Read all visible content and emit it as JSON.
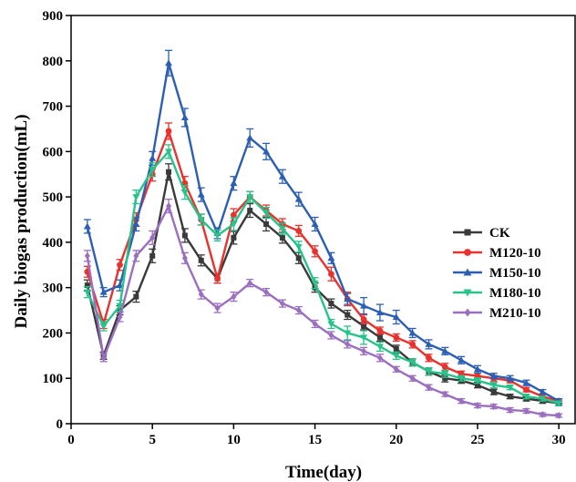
{
  "chart_data": {
    "type": "line",
    "xlabel": "Time(day)",
    "ylabel": "Daily biogas production(mL)",
    "xlim": [
      0,
      31
    ],
    "ylim": [
      0,
      900
    ],
    "xticks": [
      0,
      5,
      10,
      15,
      20,
      25,
      30
    ],
    "yticks": [
      0,
      100,
      200,
      300,
      400,
      500,
      600,
      700,
      800,
      900
    ],
    "grid": false,
    "legend": "right",
    "x": [
      1,
      2,
      3,
      4,
      5,
      6,
      7,
      8,
      9,
      10,
      11,
      12,
      13,
      14,
      15,
      16,
      17,
      18,
      19,
      20,
      21,
      22,
      23,
      24,
      25,
      26,
      27,
      28,
      29,
      30
    ],
    "series": [
      {
        "name": "CK",
        "color": "#3a3a3a",
        "marker": "square",
        "values": [
          305,
          150,
          250,
          280,
          370,
          555,
          415,
          360,
          320,
          410,
          470,
          440,
          410,
          365,
          300,
          265,
          240,
          215,
          190,
          165,
          135,
          115,
          100,
          95,
          85,
          70,
          60,
          55,
          50,
          45
        ],
        "errors": [
          12,
          8,
          10,
          12,
          15,
          18,
          15,
          12,
          10,
          14,
          15,
          15,
          12,
          12,
          10,
          10,
          10,
          8,
          8,
          8,
          8,
          8,
          8,
          6,
          6,
          6,
          5,
          5,
          5,
          5
        ]
      },
      {
        "name": "M120-10",
        "color": "#e8322d",
        "marker": "circle",
        "values": [
          335,
          220,
          350,
          450,
          550,
          645,
          530,
          450,
          320,
          460,
          500,
          470,
          440,
          425,
          380,
          330,
          275,
          230,
          205,
          190,
          175,
          145,
          125,
          110,
          105,
          100,
          95,
          75,
          60,
          50
        ],
        "errors": [
          12,
          10,
          12,
          15,
          15,
          18,
          15,
          12,
          10,
          14,
          12,
          12,
          12,
          12,
          12,
          15,
          15,
          10,
          8,
          8,
          8,
          8,
          8,
          6,
          6,
          6,
          5,
          5,
          5,
          5
        ]
      },
      {
        "name": "M150-10",
        "color": "#2c5fb3",
        "marker": "triangle",
        "values": [
          435,
          290,
          305,
          440,
          585,
          795,
          675,
          505,
          420,
          530,
          630,
          600,
          545,
          495,
          440,
          365,
          275,
          260,
          245,
          235,
          200,
          175,
          160,
          140,
          120,
          105,
          100,
          90,
          70,
          50
        ],
        "errors": [
          15,
          10,
          12,
          15,
          15,
          28,
          20,
          15,
          12,
          15,
          20,
          18,
          15,
          15,
          15,
          12,
          12,
          18,
          18,
          15,
          10,
          10,
          8,
          8,
          8,
          6,
          6,
          6,
          5,
          5
        ]
      },
      {
        "name": "M180-10",
        "color": "#27c38a",
        "marker": "triangle-down",
        "values": [
          290,
          215,
          260,
          500,
          560,
          600,
          510,
          450,
          415,
          440,
          500,
          465,
          430,
          390,
          310,
          220,
          200,
          190,
          170,
          150,
          135,
          115,
          110,
          100,
          95,
          85,
          80,
          60,
          55,
          45
        ],
        "errors": [
          12,
          10,
          12,
          15,
          15,
          15,
          15,
          12,
          12,
          14,
          12,
          12,
          12,
          12,
          12,
          10,
          15,
          15,
          10,
          8,
          8,
          8,
          8,
          6,
          6,
          6,
          5,
          5,
          5,
          5
        ]
      },
      {
        "name": "M210-10",
        "color": "#9b6fbf",
        "marker": "diamond",
        "values": [
          370,
          145,
          235,
          370,
          410,
          480,
          365,
          285,
          255,
          280,
          310,
          290,
          265,
          250,
          220,
          195,
          175,
          160,
          145,
          120,
          100,
          80,
          65,
          50,
          40,
          38,
          30,
          28,
          20,
          18
        ],
        "errors": [
          12,
          8,
          10,
          12,
          15,
          15,
          12,
          10,
          10,
          10,
          8,
          8,
          8,
          8,
          8,
          8,
          8,
          8,
          8,
          6,
          6,
          6,
          5,
          5,
          5,
          5,
          5,
          5,
          4,
          4
        ]
      }
    ]
  }
}
